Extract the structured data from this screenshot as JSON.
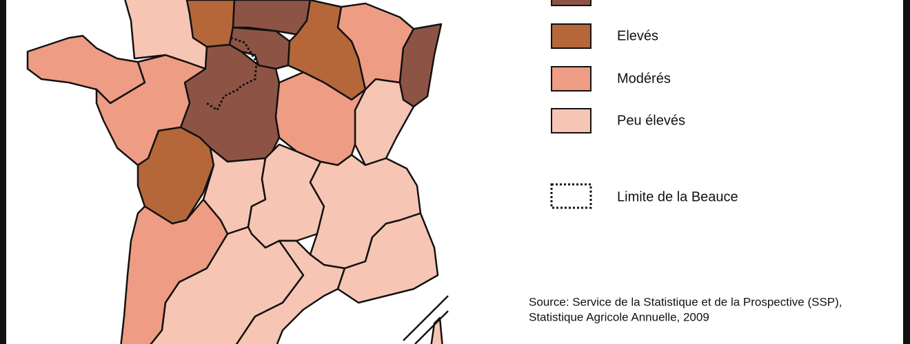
{
  "legend": {
    "items": [
      {
        "color": "#8d5445"
      },
      {
        "label": "Elevés",
        "color": "#b5673a"
      },
      {
        "label": "Modérés",
        "color": "#ee9c84"
      },
      {
        "label": "Peu élevés",
        "color": "#f7c5b3"
      }
    ],
    "boundary": "Limite de la Beauce"
  },
  "source": [
    "Source: Service de la Statistique et de la Prospective (SSP),",
    "Statistique Agricole Annuelle, 2009"
  ]
}
